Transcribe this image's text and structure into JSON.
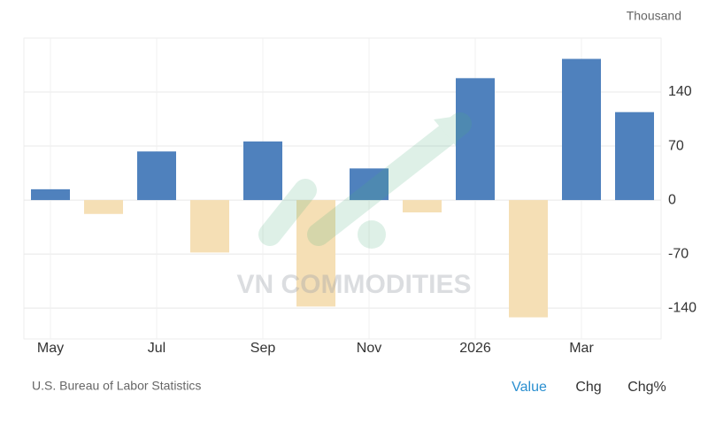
{
  "chart_data": {
    "type": "bar",
    "unit_label": "Thousand",
    "categories": [
      "May",
      null,
      "Jul",
      null,
      "Sep",
      null,
      "Nov",
      null,
      "2026",
      null,
      "Mar",
      null
    ],
    "values": [
      14,
      -18,
      63,
      -68,
      76,
      -138,
      41,
      -16,
      158,
      -152,
      183,
      114
    ],
    "positive_color": "#4f81bd",
    "negative_color": "#f5dfb5",
    "ylim": [
      -180,
      210
    ],
    "yticks": [
      -140,
      -70,
      0,
      70,
      140
    ],
    "grid": true,
    "source": "U.S. Bureau of Labor Statistics",
    "tabs": [
      "Value",
      "Chg",
      "Chg%"
    ],
    "active_tab": 0,
    "watermark": "VN COMMODITIES"
  }
}
